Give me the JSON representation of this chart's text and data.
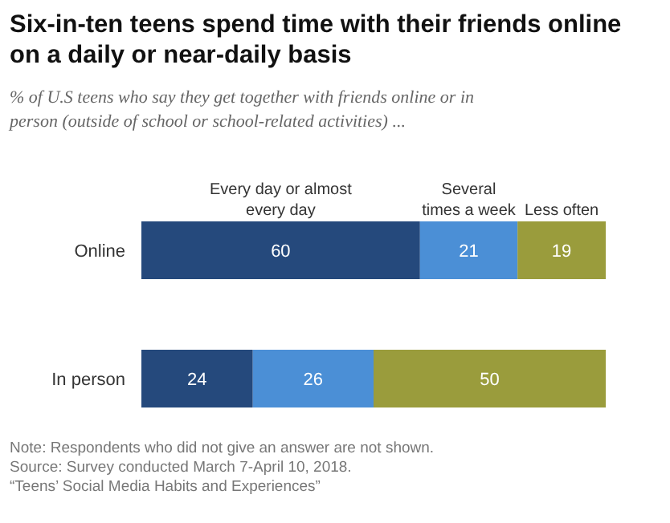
{
  "chart_data": {
    "type": "bar",
    "orientation": "horizontal",
    "stacked": true,
    "data_labels": true,
    "legend": "top",
    "title": "Six-in-ten teens spend time with their friends online on a daily or near-daily basis",
    "subtitle": "% of U.S teens who say they get together with friends online or in person (outside of school or school-related activities) ...",
    "categories": [
      "Online",
      "In person"
    ],
    "series": [
      {
        "name": "Every day or almost every day",
        "color": "#25497c",
        "values": [
          60,
          24
        ]
      },
      {
        "name": "Several times a week",
        "color": "#4b8fd6",
        "values": [
          21,
          26
        ]
      },
      {
        "name": "Less often",
        "color": "#9a9c3c",
        "values": [
          19,
          50
        ]
      }
    ],
    "annotations": [
      "Note: Respondents who did not give an answer are not shown.",
      "Source: Survey conducted March 7-April 10, 2018.",
      "“Teens’ Social Media Habits and Experiences”"
    ]
  }
}
